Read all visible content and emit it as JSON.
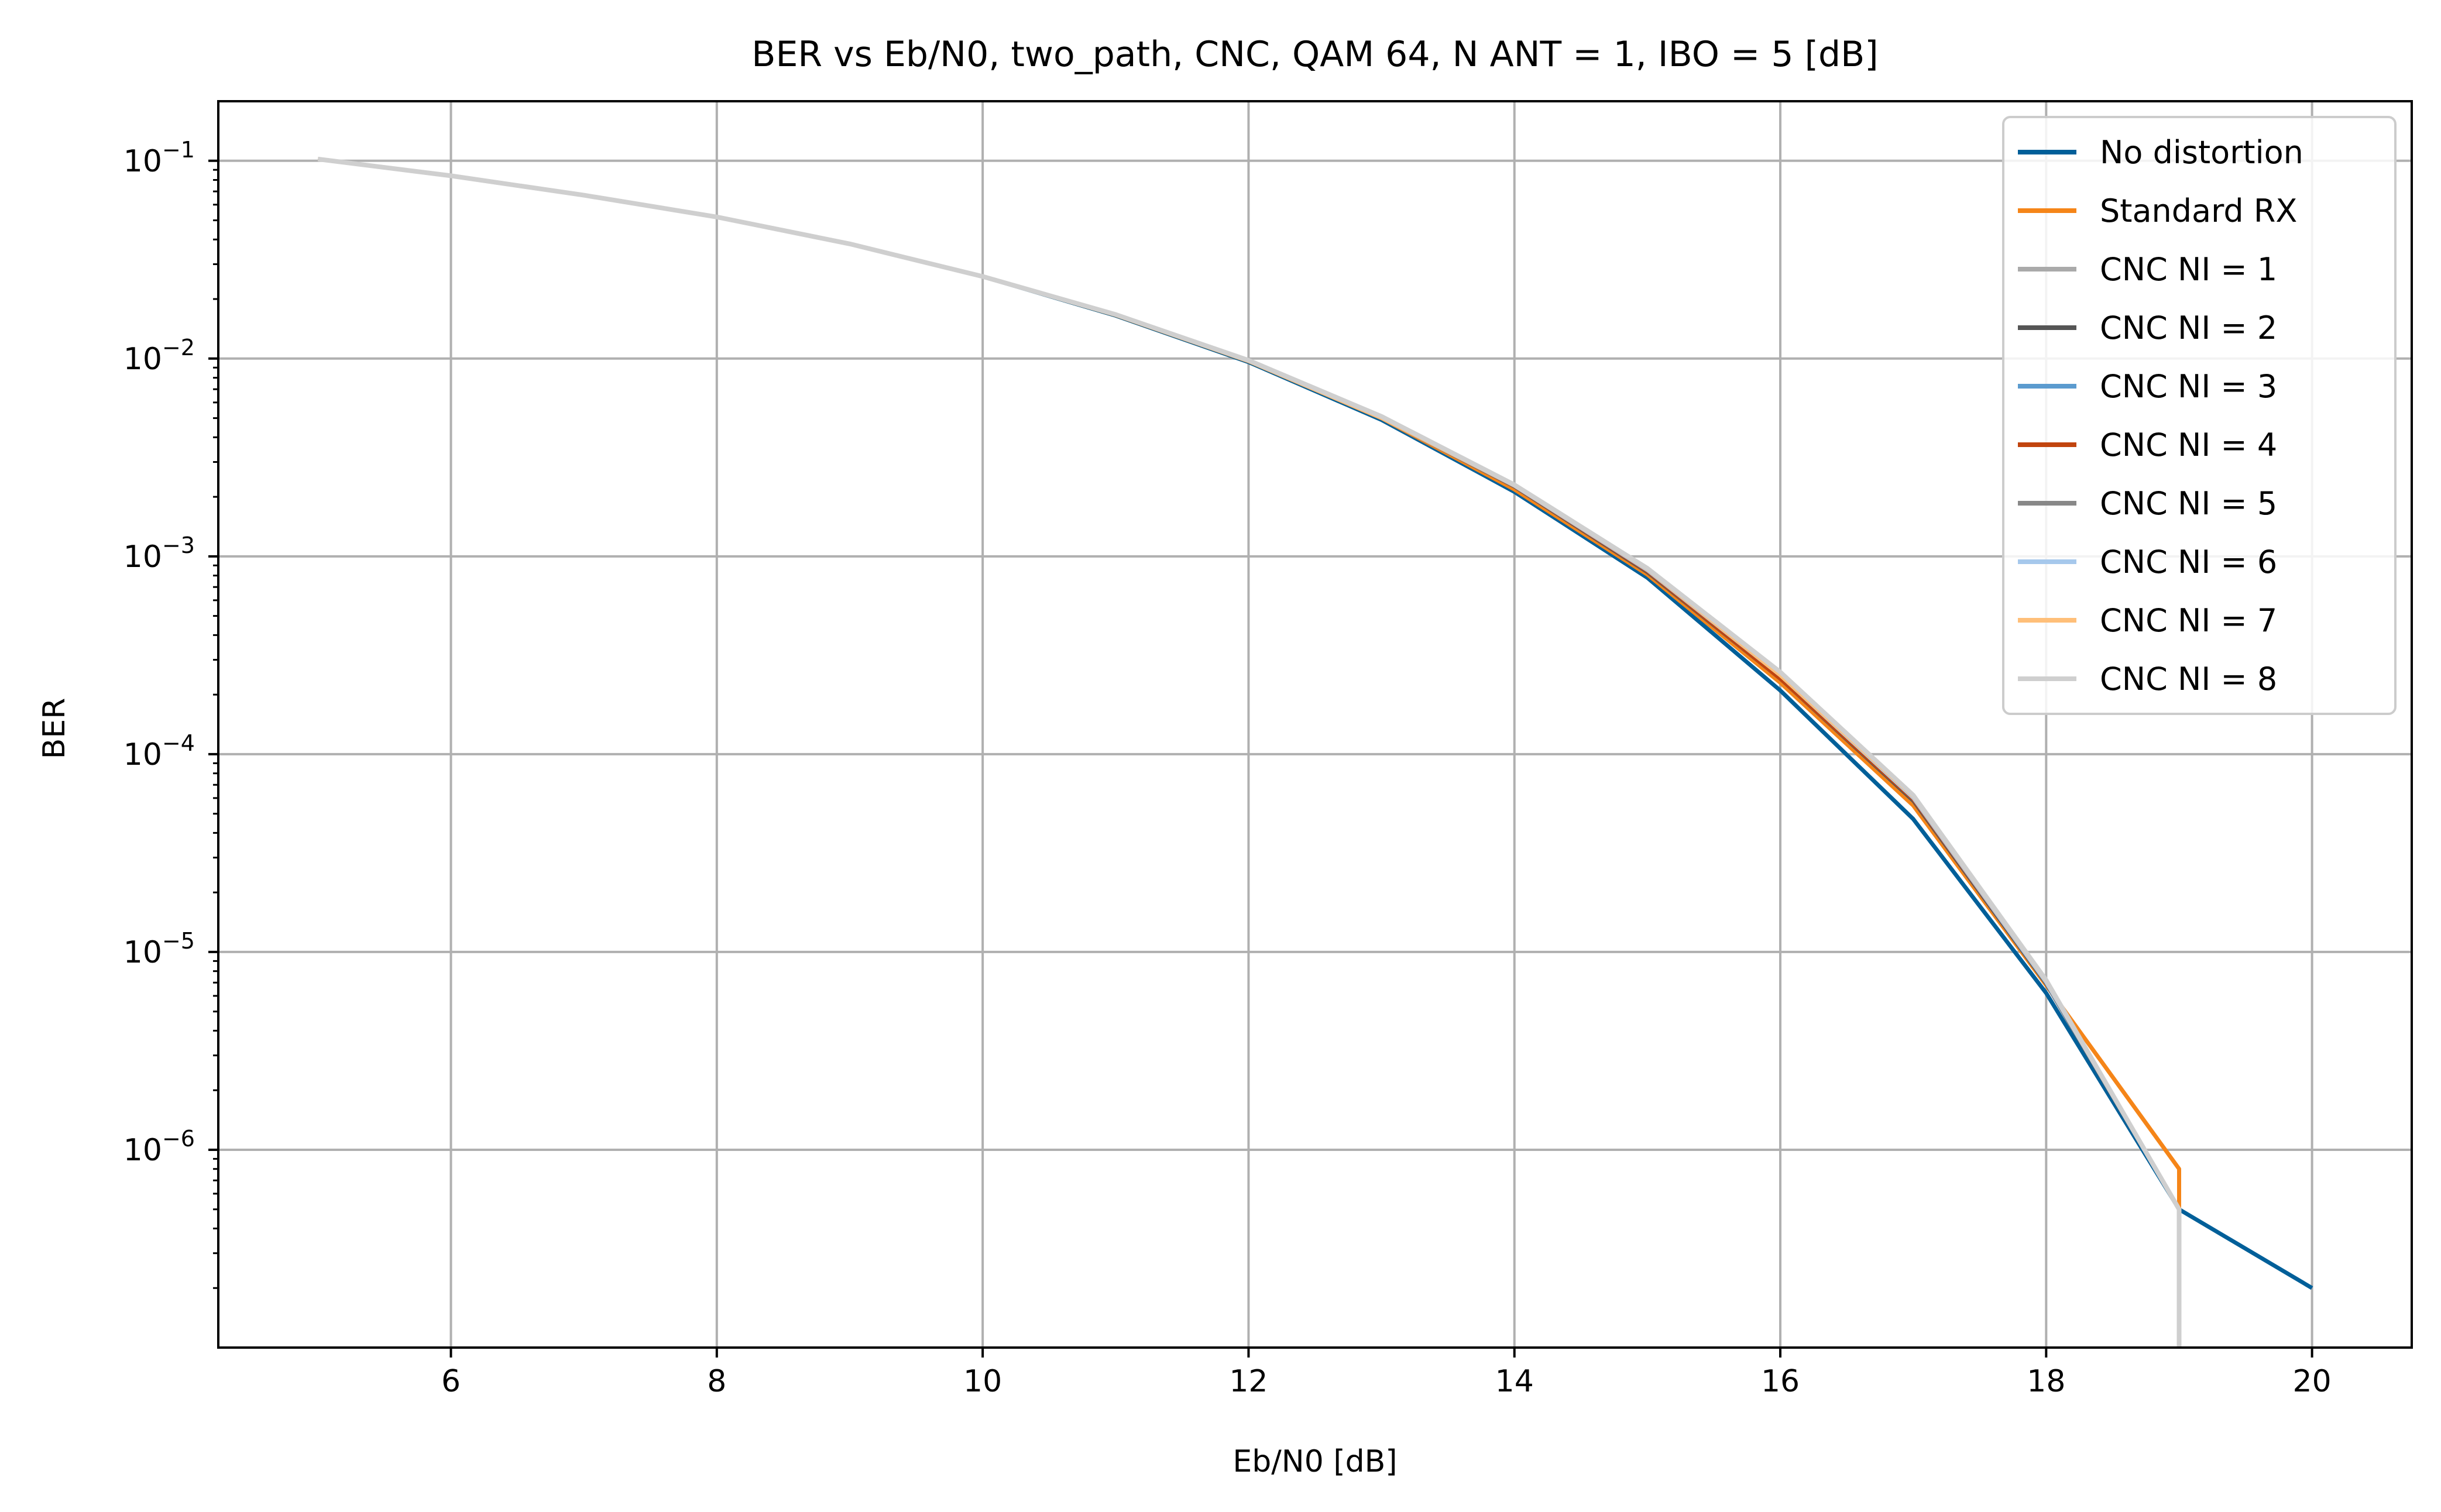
{
  "chart_data": {
    "type": "line",
    "title": "BER vs Eb/N0, two_path, CNC, QAM 64, N ANT = 1, IBO = 5 [dB]",
    "xlabel": "Eb/N0 [dB]",
    "ylabel": "BER",
    "x_scale": "linear",
    "y_scale": "log",
    "xlim": [
      4.25,
      20.75
    ],
    "ylim": [
      1e-07,
      0.2
    ],
    "x_ticks": [
      6,
      8,
      10,
      12,
      14,
      16,
      18,
      20
    ],
    "x_tick_labels": [
      "6",
      "8",
      "10",
      "12",
      "14",
      "16",
      "18",
      "20"
    ],
    "y_ticks": [
      0.1,
      0.01,
      0.001,
      0.0001,
      1e-05,
      1e-06
    ],
    "y_tick_bases": [
      "10",
      "10",
      "10",
      "10",
      "10",
      "10"
    ],
    "y_tick_exponents": [
      "−1",
      "−2",
      "−3",
      "−4",
      "−5",
      "−6"
    ],
    "grid": true,
    "legend_position": "top-right",
    "series": [
      {
        "name": "No distortion",
        "color": "#005f99",
        "width": 7,
        "x": [
          5,
          6,
          7,
          8,
          9,
          10,
          11,
          12,
          13,
          14,
          15,
          16,
          17,
          18,
          19,
          20
        ],
        "y": [
          0.102,
          0.084,
          0.067,
          0.052,
          0.038,
          0.026,
          0.0165,
          0.0096,
          0.0049,
          0.00212,
          0.00078,
          0.00021,
          4.7e-05,
          6.2e-06,
          5e-07,
          2e-07
        ]
      },
      {
        "name": "Standard RX",
        "color": "#f58518",
        "width": 7,
        "x": [
          5,
          6,
          7,
          8,
          9,
          10,
          11,
          12,
          13,
          14,
          15,
          16,
          17,
          18,
          19
        ],
        "y": [
          0.102,
          0.084,
          0.067,
          0.052,
          0.038,
          0.026,
          0.0166,
          0.0097,
          0.005,
          0.00218,
          0.00081,
          0.00023,
          5.5e-05,
          6.8e-06,
          8e-07
        ]
      },
      {
        "name": "CNC NI = 1",
        "color": "#aaaaaa",
        "width": 6,
        "x": [
          5,
          6,
          7,
          8,
          9,
          10,
          11,
          12,
          13,
          14,
          15,
          16,
          17,
          18,
          19
        ],
        "y": [
          0.102,
          0.084,
          0.067,
          0.052,
          0.038,
          0.026,
          0.0166,
          0.0097,
          0.005,
          0.00225,
          0.00083,
          0.00024,
          5.8e-05,
          6.9e-06,
          5e-07
        ]
      },
      {
        "name": "CNC NI = 2",
        "color": "#555555",
        "width": 6,
        "x": [
          5,
          6,
          7,
          8,
          9,
          10,
          11,
          12,
          13,
          14,
          15,
          16,
          17,
          18,
          19
        ],
        "y": [
          0.102,
          0.084,
          0.067,
          0.052,
          0.038,
          0.026,
          0.0166,
          0.0097,
          0.005,
          0.00225,
          0.00083,
          0.00024,
          5.8e-05,
          6.9e-06,
          5e-07
        ]
      },
      {
        "name": "CNC NI = 3",
        "color": "#5b9bcf",
        "width": 6,
        "x": [
          5,
          6,
          7,
          8,
          9,
          10,
          11,
          12,
          13,
          14,
          15,
          16,
          17,
          18,
          19
        ],
        "y": [
          0.102,
          0.084,
          0.067,
          0.052,
          0.038,
          0.026,
          0.0166,
          0.0097,
          0.005,
          0.00226,
          0.00084,
          0.00024,
          5.9e-05,
          7e-06,
          5e-07
        ]
      },
      {
        "name": "CNC NI = 4",
        "color": "#c1440e",
        "width": 6,
        "x": [
          5,
          6,
          7,
          8,
          9,
          10,
          11,
          12,
          13,
          14,
          15,
          16,
          17,
          18,
          19
        ],
        "y": [
          0.102,
          0.084,
          0.067,
          0.052,
          0.038,
          0.026,
          0.0166,
          0.0097,
          0.005,
          0.00226,
          0.00084,
          0.00024,
          5.9e-05,
          7e-06,
          5e-07
        ]
      },
      {
        "name": "CNC NI = 5",
        "color": "#888888",
        "width": 6,
        "x": [
          5,
          6,
          7,
          8,
          9,
          10,
          11,
          12,
          13,
          14,
          15,
          16,
          17,
          18,
          19
        ],
        "y": [
          0.102,
          0.084,
          0.067,
          0.052,
          0.038,
          0.026,
          0.0166,
          0.0097,
          0.005,
          0.00227,
          0.00085,
          0.00025,
          6e-05,
          7e-06,
          5e-07
        ]
      },
      {
        "name": "CNC NI = 6",
        "color": "#a6c8ec",
        "width": 6,
        "x": [
          5,
          6,
          7,
          8,
          9,
          10,
          11,
          12,
          13,
          14,
          15,
          16,
          17,
          18,
          19
        ],
        "y": [
          0.102,
          0.084,
          0.067,
          0.052,
          0.038,
          0.026,
          0.0166,
          0.0097,
          0.005,
          0.00227,
          0.00085,
          0.00025,
          6e-05,
          7e-06,
          5e-07
        ]
      },
      {
        "name": "CNC NI = 7",
        "color": "#ffbf79",
        "width": 6,
        "x": [
          5,
          6,
          7,
          8,
          9,
          10,
          11,
          12,
          13,
          14,
          15,
          16,
          17,
          18,
          19
        ],
        "y": [
          0.102,
          0.084,
          0.067,
          0.052,
          0.038,
          0.026,
          0.0166,
          0.0097,
          0.005,
          0.00228,
          0.00086,
          0.00025,
          6.1e-05,
          7.1e-06,
          5e-07
        ]
      },
      {
        "name": "CNC NI = 8",
        "color": "#cfcfcf",
        "width": 8,
        "x": [
          5,
          6,
          7,
          8,
          9,
          10,
          11,
          12,
          13,
          14,
          15,
          16,
          17,
          18,
          19
        ],
        "y": [
          0.102,
          0.084,
          0.067,
          0.052,
          0.038,
          0.026,
          0.0167,
          0.0098,
          0.0051,
          0.0023,
          0.00087,
          0.00026,
          6.2e-05,
          7.2e-06,
          5e-07
        ]
      }
    ]
  }
}
